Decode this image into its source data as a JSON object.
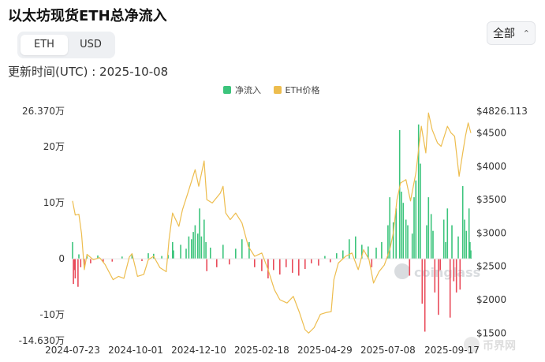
{
  "page": {
    "title": "以太坊现货ETH总净流入",
    "unit_tabs": [
      "ETH",
      "USD"
    ],
    "active_unit": "ETH",
    "range_select": "全部",
    "updated_text": "更新时间(UTC) : 2025-10-08"
  },
  "colors": {
    "inflow": "#3cc47c",
    "outflow": "#e94b5a",
    "price": "#edbd4e"
  },
  "chart_data": {
    "type": "bar",
    "legend": [
      "净流入",
      "ETH价格"
    ],
    "legend_position": "top-center",
    "grid": false,
    "x_range": [
      "2024-07-23",
      "2025-10-08"
    ],
    "x_tick_labels": [
      "2024-07-23",
      "2024-10-01",
      "2024-12-10",
      "2025-02-18",
      "2025-04-29",
      "2025-07-08",
      "2025-09-17"
    ],
    "y_left": {
      "range": [
        -146300,
        263700
      ],
      "tick_values": [
        -146300,
        -100000,
        0,
        100000,
        200000,
        263700
      ],
      "tick_labels": [
        "-14.630万",
        "-10万",
        "0",
        "10万",
        "20万",
        "26.370万"
      ]
    },
    "y_right": {
      "range": [
        1385,
        4826.113
      ],
      "tick_values": [
        1500,
        2000,
        2500,
        3000,
        3500,
        4000,
        4500,
        4826.113
      ],
      "tick_labels": [
        "$1500",
        "$2000",
        "$2500",
        "$3000",
        "$3500",
        "$4000",
        "$4500",
        "$4826.113"
      ]
    },
    "series": [
      {
        "name": "净流入",
        "axis": "left",
        "kind": "bar",
        "description": "Daily net inflow in ETH (approximate readings, positive = green, negative = red)",
        "points": [
          [
            "2024-07-23",
            30000
          ],
          [
            "2024-07-24",
            -45000
          ],
          [
            "2024-07-25",
            -20000
          ],
          [
            "2024-07-26",
            -35000
          ],
          [
            "2024-07-29",
            -50000
          ],
          [
            "2024-07-30",
            8000
          ],
          [
            "2024-08-01",
            -15000
          ],
          [
            "2024-08-05",
            -12000
          ],
          [
            "2024-08-08",
            5000
          ],
          [
            "2024-08-12",
            -8000
          ],
          [
            "2024-08-20",
            6000
          ],
          [
            "2024-08-26",
            -6000
          ],
          [
            "2024-09-05",
            -5000
          ],
          [
            "2024-09-16",
            4000
          ],
          [
            "2024-09-27",
            8000
          ],
          [
            "2024-10-08",
            -4000
          ],
          [
            "2024-10-15",
            10000
          ],
          [
            "2024-10-21",
            9000
          ],
          [
            "2024-10-30",
            5000
          ],
          [
            "2024-11-06",
            7000
          ],
          [
            "2024-11-11",
            30000
          ],
          [
            "2024-11-12",
            15000
          ],
          [
            "2024-11-20",
            25000
          ],
          [
            "2024-11-26",
            18000
          ],
          [
            "2024-11-29",
            40000
          ],
          [
            "2024-12-02",
            35000
          ],
          [
            "2024-12-04",
            48000
          ],
          [
            "2024-12-06",
            60000
          ],
          [
            "2024-12-09",
            45000
          ],
          [
            "2024-12-11",
            90000
          ],
          [
            "2024-12-13",
            40000
          ],
          [
            "2024-12-16",
            70000
          ],
          [
            "2024-12-18",
            30000
          ],
          [
            "2024-12-19",
            -22000
          ],
          [
            "2024-12-23",
            20000
          ],
          [
            "2024-12-30",
            -15000
          ],
          [
            "2025-01-06",
            25000
          ],
          [
            "2025-01-13",
            -10000
          ],
          [
            "2025-01-20",
            18000
          ],
          [
            "2025-01-27",
            35000
          ],
          [
            "2025-02-04",
            30000
          ],
          [
            "2025-02-10",
            -15000
          ],
          [
            "2025-02-18",
            -22000
          ],
          [
            "2025-02-25",
            -35000
          ],
          [
            "2025-03-03",
            -20000
          ],
          [
            "2025-03-10",
            -28000
          ],
          [
            "2025-03-17",
            -15000
          ],
          [
            "2025-03-24",
            -25000
          ],
          [
            "2025-03-31",
            -30000
          ],
          [
            "2025-04-07",
            -18000
          ],
          [
            "2025-04-14",
            -8000
          ],
          [
            "2025-04-22",
            -12000
          ],
          [
            "2025-04-29",
            5000
          ],
          [
            "2025-05-05",
            -6000
          ],
          [
            "2025-05-12",
            10000
          ],
          [
            "2025-05-19",
            15000
          ],
          [
            "2025-05-26",
            35000
          ],
          [
            "2025-06-02",
            40000
          ],
          [
            "2025-06-09",
            25000
          ],
          [
            "2025-06-16",
            22000
          ],
          [
            "2025-06-20",
            -15000
          ],
          [
            "2025-06-25",
            20000
          ],
          [
            "2025-07-01",
            30000
          ],
          [
            "2025-07-08",
            60000
          ],
          [
            "2025-07-10",
            110000
          ],
          [
            "2025-07-14",
            65000
          ],
          [
            "2025-07-17",
            90000
          ],
          [
            "2025-07-21",
            230000
          ],
          [
            "2025-07-23",
            120000
          ],
          [
            "2025-07-25",
            100000
          ],
          [
            "2025-07-28",
            70000
          ],
          [
            "2025-07-30",
            60000
          ],
          [
            "2025-08-01",
            -30000
          ],
          [
            "2025-08-04",
            45000
          ],
          [
            "2025-08-06",
            110000
          ],
          [
            "2025-08-08",
            140000
          ],
          [
            "2025-08-11",
            240000
          ],
          [
            "2025-08-13",
            170000
          ],
          [
            "2025-08-15",
            -80000
          ],
          [
            "2025-08-18",
            -130000
          ],
          [
            "2025-08-20",
            60000
          ],
          [
            "2025-08-22",
            110000
          ],
          [
            "2025-08-25",
            80000
          ],
          [
            "2025-08-27",
            50000
          ],
          [
            "2025-08-29",
            -60000
          ],
          [
            "2025-09-02",
            -100000
          ],
          [
            "2025-09-04",
            -20000
          ],
          [
            "2025-09-08",
            70000
          ],
          [
            "2025-09-10",
            30000
          ],
          [
            "2025-09-12",
            90000
          ],
          [
            "2025-09-15",
            -105000
          ],
          [
            "2025-09-17",
            60000
          ],
          [
            "2025-09-19",
            -40000
          ],
          [
            "2025-09-22",
            -60000
          ],
          [
            "2025-09-24",
            40000
          ],
          [
            "2025-09-26",
            -55000
          ],
          [
            "2025-09-29",
            130000
          ],
          [
            "2025-10-01",
            70000
          ],
          [
            "2025-10-03",
            50000
          ],
          [
            "2025-10-06",
            90000
          ],
          [
            "2025-10-07",
            30000
          ],
          [
            "2025-10-08",
            15000
          ]
        ]
      },
      {
        "name": "ETH价格",
        "axis": "right",
        "kind": "line",
        "description": "ETH price in USD (approximate readings)",
        "points": [
          [
            "2024-07-23",
            3480
          ],
          [
            "2024-07-26",
            3270
          ],
          [
            "2024-07-30",
            3280
          ],
          [
            "2024-08-02",
            2990
          ],
          [
            "2024-08-05",
            2450
          ],
          [
            "2024-08-08",
            2680
          ],
          [
            "2024-08-15",
            2600
          ],
          [
            "2024-08-22",
            2630
          ],
          [
            "2024-08-28",
            2530
          ],
          [
            "2024-09-06",
            2300
          ],
          [
            "2024-09-12",
            2350
          ],
          [
            "2024-09-18",
            2320
          ],
          [
            "2024-09-24",
            2640
          ],
          [
            "2024-09-27",
            2690
          ],
          [
            "2024-10-03",
            2350
          ],
          [
            "2024-10-10",
            2380
          ],
          [
            "2024-10-15",
            2600
          ],
          [
            "2024-10-21",
            2650
          ],
          [
            "2024-10-28",
            2480
          ],
          [
            "2024-11-04",
            2420
          ],
          [
            "2024-11-07",
            2900
          ],
          [
            "2024-11-11",
            3300
          ],
          [
            "2024-11-18",
            3100
          ],
          [
            "2024-11-22",
            3350
          ],
          [
            "2024-11-28",
            3600
          ],
          [
            "2024-12-06",
            3950
          ],
          [
            "2024-12-10",
            3700
          ],
          [
            "2024-12-16",
            4080
          ],
          [
            "2024-12-19",
            3500
          ],
          [
            "2024-12-25",
            3450
          ],
          [
            "2025-01-03",
            3600
          ],
          [
            "2025-01-06",
            3700
          ],
          [
            "2025-01-09",
            3300
          ],
          [
            "2025-01-14",
            3200
          ],
          [
            "2025-01-20",
            3300
          ],
          [
            "2025-01-27",
            3150
          ],
          [
            "2025-02-03",
            2800
          ],
          [
            "2025-02-10",
            2650
          ],
          [
            "2025-02-18",
            2700
          ],
          [
            "2025-02-25",
            2450
          ],
          [
            "2025-03-04",
            2150
          ],
          [
            "2025-03-10",
            2000
          ],
          [
            "2025-03-18",
            1950
          ],
          [
            "2025-03-25",
            2050
          ],
          [
            "2025-04-01",
            1800
          ],
          [
            "2025-04-07",
            1550
          ],
          [
            "2025-04-11",
            1500
          ],
          [
            "2025-04-17",
            1580
          ],
          [
            "2025-04-24",
            1780
          ],
          [
            "2025-05-01",
            1810
          ],
          [
            "2025-05-06",
            1820
          ],
          [
            "2025-05-09",
            2300
          ],
          [
            "2025-05-14",
            2550
          ],
          [
            "2025-05-22",
            2650
          ],
          [
            "2025-05-29",
            2700
          ],
          [
            "2025-06-05",
            2450
          ],
          [
            "2025-06-11",
            2750
          ],
          [
            "2025-06-17",
            2600
          ],
          [
            "2025-06-22",
            2250
          ],
          [
            "2025-06-28",
            2420
          ],
          [
            "2025-07-04",
            2520
          ],
          [
            "2025-07-10",
            2750
          ],
          [
            "2025-07-14",
            3000
          ],
          [
            "2025-07-18",
            3500
          ],
          [
            "2025-07-22",
            3750
          ],
          [
            "2025-07-28",
            3800
          ],
          [
            "2025-08-02",
            3480
          ],
          [
            "2025-08-08",
            3900
          ],
          [
            "2025-08-11",
            4250
          ],
          [
            "2025-08-14",
            4600
          ],
          [
            "2025-08-19",
            4200
          ],
          [
            "2025-08-22",
            4800
          ],
          [
            "2025-08-26",
            4550
          ],
          [
            "2025-09-01",
            4350
          ],
          [
            "2025-09-05",
            4300
          ],
          [
            "2025-09-12",
            4600
          ],
          [
            "2025-09-16",
            4500
          ],
          [
            "2025-09-20",
            4450
          ],
          [
            "2025-09-25",
            3850
          ],
          [
            "2025-09-29",
            4200
          ],
          [
            "2025-10-02",
            4450
          ],
          [
            "2025-10-05",
            4650
          ],
          [
            "2025-10-08",
            4500
          ]
        ]
      }
    ]
  }
}
